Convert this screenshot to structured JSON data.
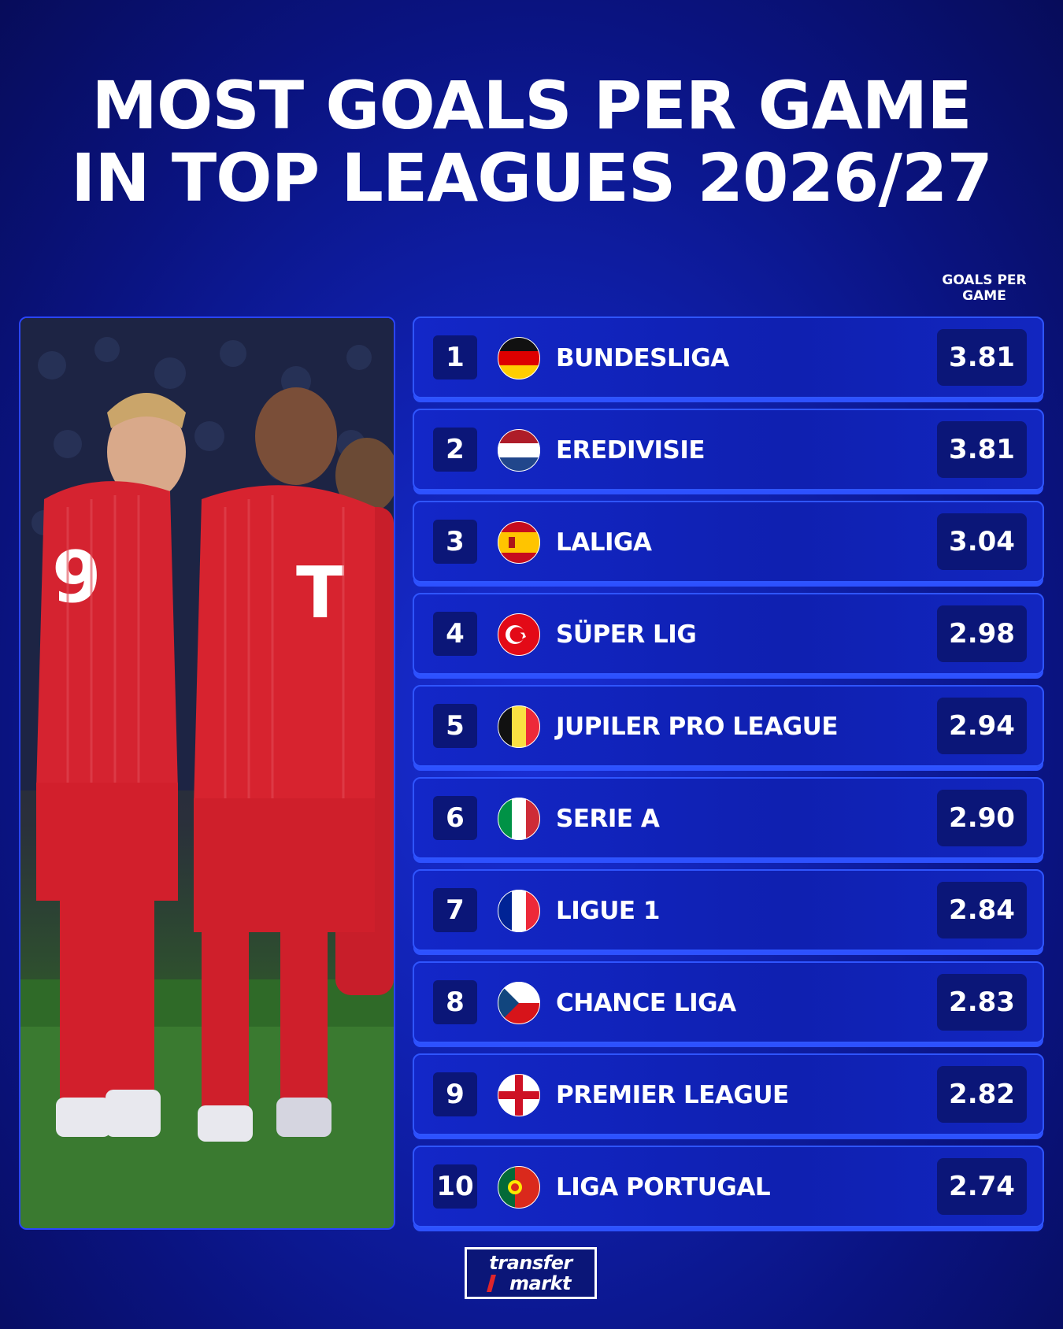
{
  "title": {
    "line1": "MOST GOALS PER GAME",
    "line2": "IN TOP LEAGUES 2026/27"
  },
  "column_header": {
    "line1": "GOALS PER",
    "line2": "GAME"
  },
  "leagues": [
    {
      "rank": "1",
      "name": "BUNDESLIGA",
      "value": "3.81",
      "flag": "germany-flag-icon"
    },
    {
      "rank": "2",
      "name": "EREDIVISIE",
      "value": "3.81",
      "flag": "netherlands-flag-icon"
    },
    {
      "rank": "3",
      "name": "LALIGA",
      "value": "3.04",
      "flag": "spain-flag-icon"
    },
    {
      "rank": "4",
      "name": "SÜPER LIG",
      "value": "2.98",
      "flag": "turkey-flag-icon"
    },
    {
      "rank": "5",
      "name": "JUPILER PRO LEAGUE",
      "value": "2.94",
      "flag": "belgium-flag-icon"
    },
    {
      "rank": "6",
      "name": "SERIE A",
      "value": "2.90",
      "flag": "italy-flag-icon"
    },
    {
      "rank": "7",
      "name": "LIGUE 1",
      "value": "2.84",
      "flag": "france-flag-icon"
    },
    {
      "rank": "8",
      "name": "CHANCE LIGA",
      "value": "2.83",
      "flag": "czechia-flag-icon"
    },
    {
      "rank": "9",
      "name": "PREMIER LEAGUE",
      "value": "2.82",
      "flag": "england-flag-icon"
    },
    {
      "rank": "10",
      "name": "LIGA PORTUGAL",
      "value": "2.74",
      "flag": "portugal-flag-icon"
    }
  ],
  "logo": {
    "line1": "transfer",
    "line2": "markt"
  },
  "colors": {
    "background": "#1021b0",
    "row_border": "#2f55ff",
    "box": "#0b1678"
  }
}
